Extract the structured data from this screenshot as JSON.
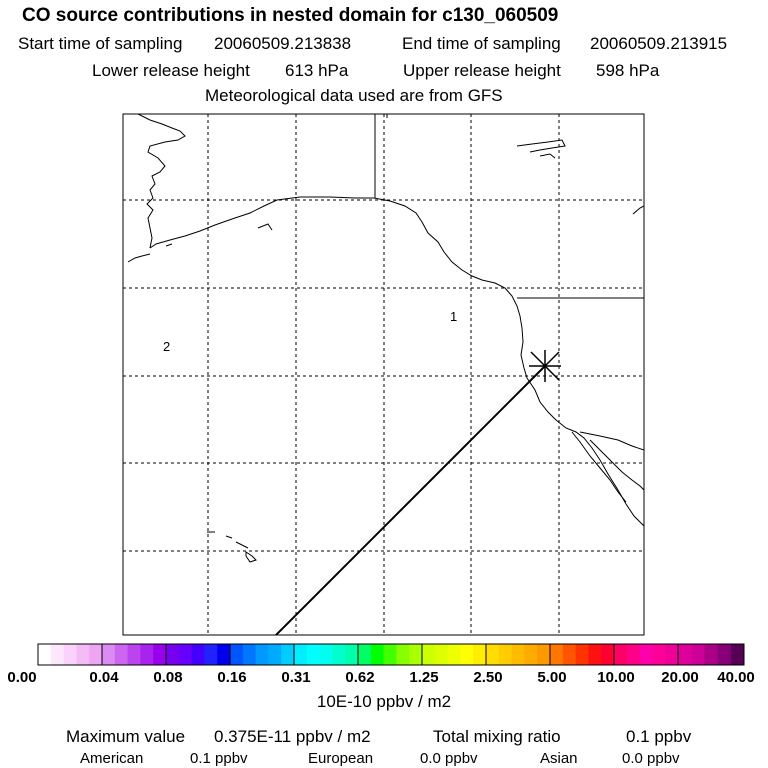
{
  "header": {
    "title": "CO  source contributions in nested domain for c130_060509",
    "start_label": "Start time of sampling",
    "start_value": "20060509.213838",
    "end_label": "End time of sampling",
    "end_value": "20060509.213915",
    "lower_label": "Lower release height",
    "lower_value": "613 hPa",
    "upper_label": "Upper release height",
    "upper_value": "598 hPa",
    "met": "Meteorological data used are from GFS"
  },
  "map": {
    "region_labels": [
      "1",
      "2"
    ]
  },
  "colorbar": {
    "labels": [
      "0.00",
      "0.04",
      "0.08",
      "0.16",
      "0.31",
      "0.62",
      "1.25",
      "2.50",
      "5.00",
      "10.00",
      "20.00",
      "40.00"
    ],
    "units": "10E-10 ppbv / m2",
    "colors": [
      [
        "#ffffff",
        "#fde7fd",
        "#f9d3fb",
        "#f4bcf7",
        "#eea6f4"
      ],
      [
        "#db8cf2",
        "#cc66f0",
        "#bb44ee",
        "#aa22ee",
        "#9900ee"
      ],
      [
        "#7700ee",
        "#6600ff",
        "#4400ff",
        "#2222ff",
        "#0000ee"
      ],
      [
        "#0055ff",
        "#0077ff",
        "#0099ff",
        "#00aaff",
        "#00ccff"
      ],
      [
        "#00eeff",
        "#00ffff",
        "#00ffee",
        "#00ffcc",
        "#00ffaa"
      ],
      [
        "#00ff66",
        "#00ff00",
        "#44ff00",
        "#88ff00",
        "#aaff00"
      ],
      [
        "#ccff00",
        "#ddff00",
        "#eeff00",
        "#ffff00",
        "#ffee00"
      ],
      [
        "#ffdd00",
        "#ffcc00",
        "#ffbb00",
        "#ffaa00",
        "#ff9900"
      ],
      [
        "#ff7700",
        "#ff5500",
        "#ff3300",
        "#ff1111",
        "#ff0033"
      ],
      [
        "#ff0066",
        "#ff0088",
        "#ff00aa",
        "#ff0099",
        "#ee0099"
      ],
      [
        "#dd0099",
        "#cc0099",
        "#aa0088",
        "#880077",
        "#550055"
      ]
    ]
  },
  "footer": {
    "max_label": "Maximum value",
    "max_value": "0.375E-11 ppbv / m2",
    "total_label": "Total mixing ratio",
    "total_value": "0.1 ppbv",
    "american_label": "American",
    "american_value": "0.1 ppbv",
    "european_label": "European",
    "european_value": "0.0 ppbv",
    "asian_label": "Asian",
    "asian_value": "0.0 ppbv"
  }
}
